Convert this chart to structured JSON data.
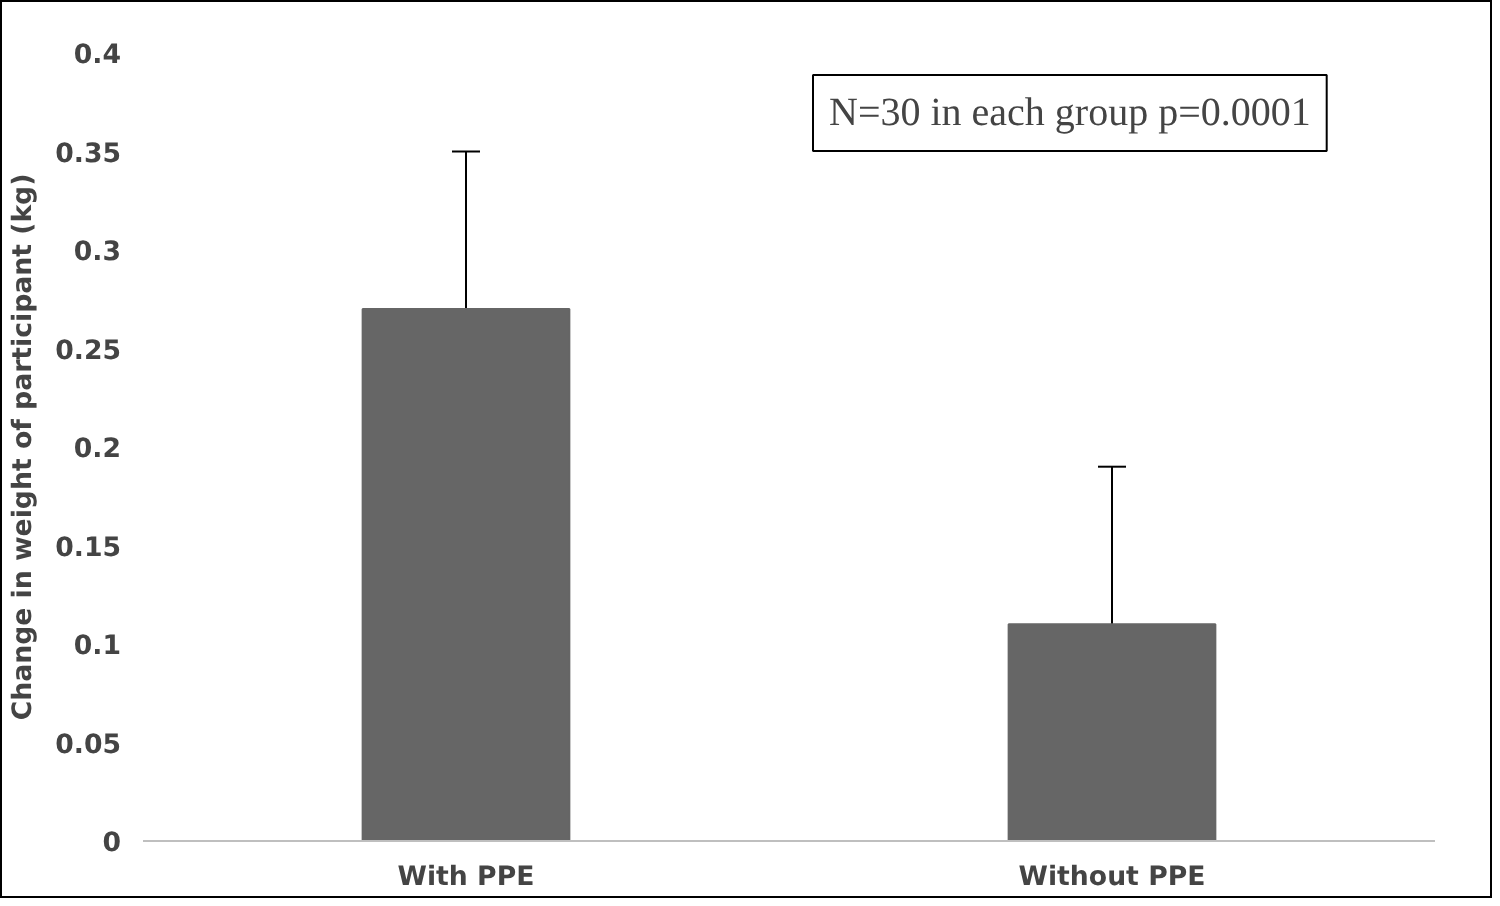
{
  "chart_data": {
    "type": "bar",
    "ylabel": "Change in weight of participant (kg)",
    "categories": [
      "With PPE",
      "Without PPE"
    ],
    "values": [
      0.27,
      0.11
    ],
    "errors": [
      0.08,
      0.08
    ],
    "color": "#666666",
    "ylim": [
      0,
      0.4
    ],
    "yticks": [
      0,
      0.05,
      0.1,
      0.15,
      0.2,
      0.25,
      0.3,
      0.35,
      0.4
    ],
    "grid": false,
    "annotations": [
      "N=30 in each group p=0.0001"
    ]
  }
}
